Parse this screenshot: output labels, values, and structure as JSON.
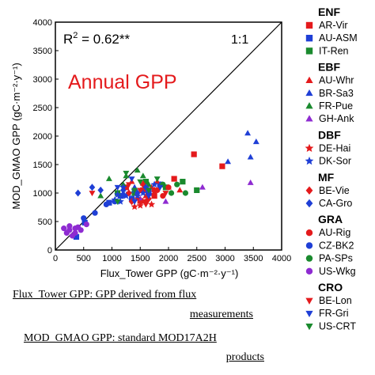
{
  "chart_data": {
    "type": "scatter",
    "title": "Annual GPP",
    "xlabel": "Flux_Tower GPP (gC·m⁻²·y⁻¹)",
    "ylabel": "MOD_GMAO GPP (gC·m⁻²·y⁻¹)",
    "xlim": [
      0,
      4000
    ],
    "ylim": [
      0,
      4000
    ],
    "xticks": [
      "0",
      "500",
      "1000",
      "1500",
      "2000",
      "2500",
      "3000",
      "3500",
      "4000"
    ],
    "yticks": [
      "0",
      "500",
      "1000",
      "1500",
      "2000",
      "2500",
      "3000",
      "3500",
      "4000"
    ],
    "r2_text": "R",
    "r2_value": " = 0.62**",
    "one_to_one_label": "1:1",
    "grid": false,
    "legend_position": "right",
    "groups": [
      {
        "name": "ENF",
        "series": [
          {
            "name": "AR-Vir",
            "marker": "square",
            "color": "#e41a1c",
            "points": [
              [
                2450,
                1680
              ],
              [
                2950,
                1470
              ],
              [
                1550,
                1050
              ],
              [
                1250,
                1100
              ],
              [
                1750,
                950
              ],
              [
                2100,
                1250
              ],
              [
                1500,
                860
              ]
            ]
          },
          {
            "name": "AU-ASM",
            "marker": "square",
            "color": "#1f3fd6",
            "points": [
              [
                370,
                230
              ],
              [
                520,
                480
              ],
              [
                950,
                830
              ],
              [
                1150,
                950
              ],
              [
                1350,
                900
              ],
              [
                1650,
                1000
              ],
              [
                1850,
                1150
              ]
            ]
          },
          {
            "name": "IT-Ren",
            "marker": "square",
            "color": "#1a8a2e",
            "points": [
              [
                2500,
                1050
              ],
              [
                2250,
                1200
              ],
              [
                1400,
                1000
              ],
              [
                1100,
                1000
              ],
              [
                1600,
                1200
              ],
              [
                1950,
                1100
              ]
            ]
          }
        ]
      },
      {
        "name": "EBF",
        "series": [
          {
            "name": "AU-Whr",
            "marker": "triangle",
            "color": "#e41a1c",
            "points": [
              [
                1350,
                1200
              ],
              [
                1550,
                1170
              ],
              [
                1800,
                1200
              ],
              [
                1600,
                950
              ],
              [
                1700,
                1100
              ],
              [
                2000,
                1100
              ],
              [
                2200,
                1050
              ]
            ]
          },
          {
            "name": "BR-Sa3",
            "marker": "triangle",
            "color": "#1f3fd6",
            "points": [
              [
                3400,
                2050
              ],
              [
                3550,
                1900
              ],
              [
                3450,
                1630
              ],
              [
                3050,
                1550
              ],
              [
                1200,
                1000
              ],
              [
                1400,
                1100
              ],
              [
                1850,
                1150
              ]
            ]
          },
          {
            "name": "FR-Pue",
            "marker": "triangle",
            "color": "#1a8a2e",
            "points": [
              [
                1250,
                1300
              ],
              [
                1450,
                1400
              ],
              [
                950,
                1250
              ],
              [
                1550,
                1300
              ],
              [
                1200,
                1150
              ],
              [
                1650,
                1150
              ],
              [
                800,
                950
              ]
            ]
          },
          {
            "name": "GH-Ank",
            "marker": "triangle",
            "color": "#8e2bd1",
            "points": [
              [
                3450,
                1180
              ],
              [
                2600,
                1100
              ],
              [
                1500,
                900
              ],
              [
                1950,
                850
              ]
            ]
          }
        ]
      },
      {
        "name": "DBF",
        "series": [
          {
            "name": "DE-Hai",
            "marker": "star",
            "color": "#e41a1c",
            "points": [
              [
                1500,
                780
              ],
              [
                1550,
                850
              ],
              [
                1700,
                800
              ],
              [
                1400,
                760
              ],
              [
                1450,
                900
              ]
            ]
          },
          {
            "name": "DK-Sor",
            "marker": "star",
            "color": "#1f3fd6",
            "points": [
              [
                1050,
                880
              ],
              [
                1150,
                850
              ],
              [
                1250,
                950
              ],
              [
                1300,
                1000
              ],
              [
                1350,
                880
              ],
              [
                1450,
                950
              ],
              [
                1550,
                1000
              ],
              [
                1100,
                970
              ],
              [
                1650,
                1050
              ],
              [
                1200,
                1100
              ],
              [
                1400,
                1050
              ],
              [
                1750,
                1150
              ]
            ]
          }
        ]
      },
      {
        "name": "MF",
        "series": [
          {
            "name": "BE-Vie",
            "marker": "diamond",
            "color": "#e41a1c",
            "points": [
              [
                1300,
                1000
              ],
              [
                1450,
                1000
              ],
              [
                1650,
                900
              ],
              [
                1550,
                1150
              ],
              [
                1350,
                850
              ],
              [
                1750,
                1050
              ]
            ]
          },
          {
            "name": "CA-Gro",
            "marker": "diamond",
            "color": "#1f3fd6",
            "points": [
              [
                400,
                1000
              ],
              [
                650,
                1100
              ],
              [
                800,
                1050
              ],
              [
                1200,
                1050
              ],
              [
                1450,
                1000
              ],
              [
                1600,
                1100
              ]
            ]
          }
        ]
      },
      {
        "name": "GRA",
        "series": [
          {
            "name": "AU-Rig",
            "marker": "circle",
            "color": "#e41a1c",
            "points": [
              [
                1600,
                850
              ],
              [
                1900,
                950
              ],
              [
                2000,
                1100
              ],
              [
                1800,
                1050
              ]
            ]
          },
          {
            "name": "CZ-BK2",
            "marker": "circle",
            "color": "#1f3fd6",
            "points": [
              [
                500,
                560
              ],
              [
                700,
                650
              ],
              [
                900,
                800
              ],
              [
                1050,
                850
              ]
            ]
          },
          {
            "name": "PA-SPs",
            "marker": "circle",
            "color": "#1a8a2e",
            "points": [
              [
                2050,
                1000
              ],
              [
                2150,
                1150
              ],
              [
                2300,
                1000
              ],
              [
                1900,
                1150
              ]
            ]
          },
          {
            "name": "US-Wkg",
            "marker": "circle",
            "color": "#8e2bd1",
            "points": [
              [
                150,
                380
              ],
              [
                250,
                350
              ],
              [
                350,
                300
              ],
              [
                400,
                400
              ],
              [
                300,
                250
              ],
              [
                450,
                350
              ],
              [
                200,
                300
              ],
              [
                550,
                450
              ],
              [
                350,
                380
              ],
              [
                250,
                420
              ]
            ]
          }
        ]
      },
      {
        "name": "CRO",
        "series": [
          {
            "name": "BE-Lon",
            "marker": "triangle-down",
            "color": "#e41a1c",
            "points": [
              [
                650,
                1000
              ],
              [
                1300,
                1150
              ],
              [
                1500,
                1050
              ],
              [
                1750,
                1000
              ],
              [
                1600,
                800
              ],
              [
                1950,
                1000
              ]
            ]
          },
          {
            "name": "FR-Gri",
            "marker": "triangle-down",
            "color": "#1f3fd6",
            "points": [
              [
                1200,
                950
              ],
              [
                1400,
                850
              ],
              [
                1350,
                1250
              ],
              [
                1100,
                1100
              ],
              [
                1650,
                950
              ],
              [
                1850,
                1100
              ]
            ]
          },
          {
            "name": "US-CRT",
            "marker": "triangle-down",
            "color": "#1a8a2e",
            "points": [
              [
                1250,
                1350
              ],
              [
                1500,
                1200
              ],
              [
                1650,
                1050
              ],
              [
                1800,
                1250
              ],
              [
                1100,
                850
              ],
              [
                1400,
                1050
              ]
            ]
          }
        ]
      }
    ],
    "captions": [
      "Flux_Tower GPP: GPP derived from flux",
      "measurements",
      "MOD_GMAO GPP: standard MOD17A2H",
      "products"
    ]
  }
}
